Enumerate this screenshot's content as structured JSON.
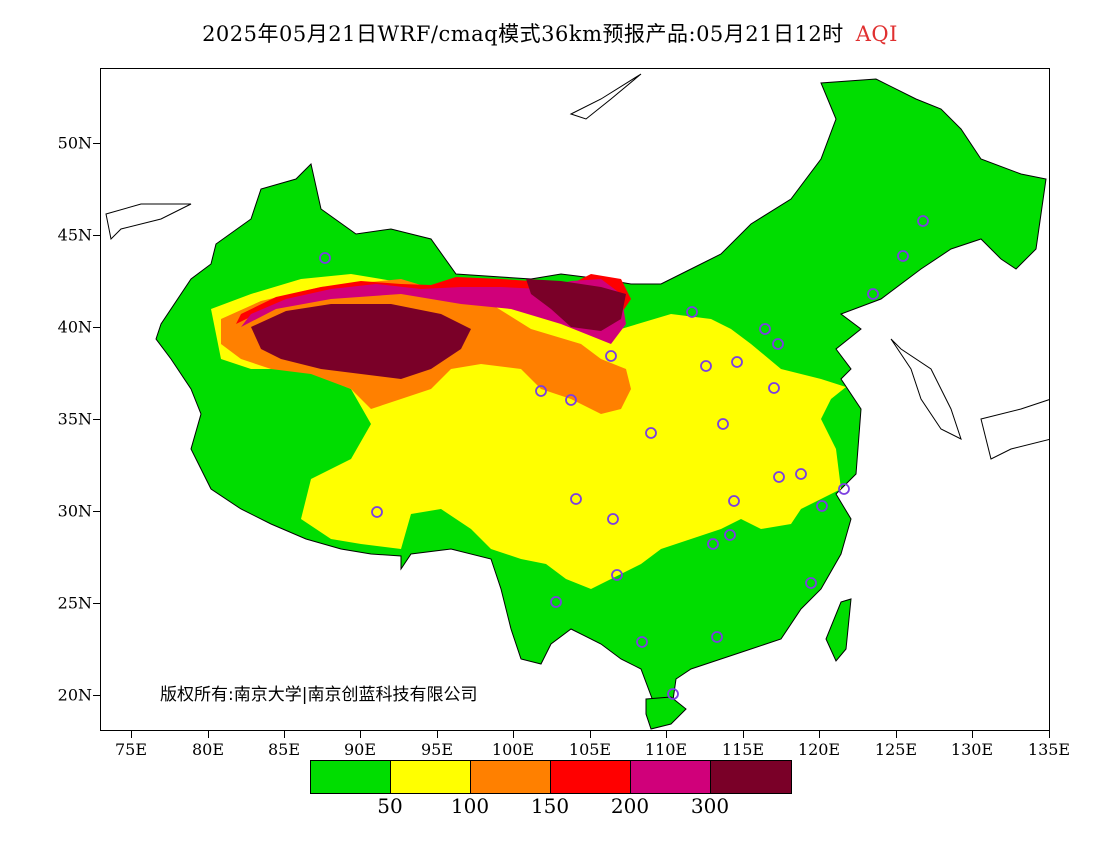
{
  "title": {
    "text": "2025年05月21日WRF/cmaq模式36km预报产品:05月21日12时",
    "variable": "AQI",
    "variable_color": "#e03030"
  },
  "axes": {
    "lat_labels": [
      "50N",
      "45N",
      "40N",
      "35N",
      "30N",
      "25N",
      "20N"
    ],
    "lon_labels": [
      "75E",
      "80E",
      "85E",
      "90E",
      "95E",
      "100E",
      "105E",
      "110E",
      "115E",
      "120E",
      "125E",
      "130E",
      "135E"
    ]
  },
  "copyright": "版权所有:南京大学|南京创蓝科技有限公司",
  "legend": {
    "colors": [
      "#00dd00",
      "#ffff00",
      "#ff8000",
      "#ff0000",
      "#d0007a",
      "#7a0028"
    ],
    "labels": [
      "50",
      "100",
      "150",
      "200",
      "300"
    ]
  },
  "station_marker_color": "#7b3fe0"
}
